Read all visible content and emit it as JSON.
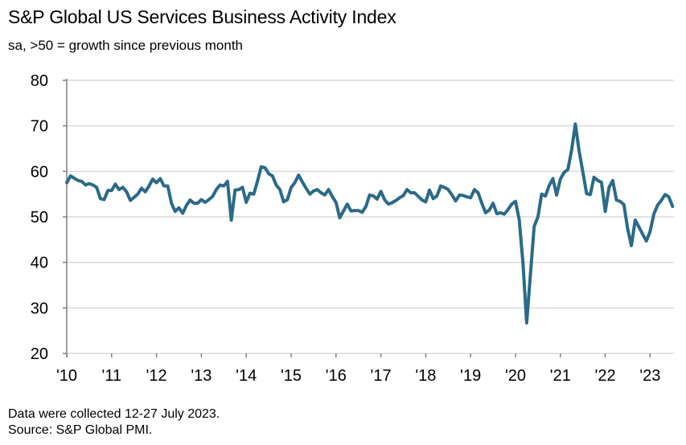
{
  "title": "S&P Global US Services Business Activity Index",
  "subtitle": "sa, >50 = growth since previous month",
  "footer": {
    "note": "Data were collected 12-27 July 2023.",
    "source": "Source: S&P Global PMI."
  },
  "colors": {
    "line": "#2b6a88",
    "grid": "#d9d9d9",
    "axis": "#808080"
  },
  "chart_data": {
    "type": "line",
    "title": "S&P Global US Services Business Activity Index",
    "xlabel": "",
    "ylabel": "",
    "ylim": [
      20,
      80
    ],
    "yticks": [
      "20",
      "30",
      "40",
      "50",
      "60",
      "70",
      "80"
    ],
    "xticks": [
      "'10",
      "'11",
      "'12",
      "'13",
      "'14",
      "'15",
      "'16",
      "'17",
      "'18",
      "'19",
      "'20",
      "'21",
      "'22",
      "'23"
    ],
    "x_start": "2010-01",
    "x_end": "2023-07",
    "frequency": "monthly",
    "grid": true,
    "series": [
      {
        "name": "Services Business Activity Index",
        "values": [
          57.5,
          59,
          58.5,
          58,
          57.8,
          57,
          57.3,
          57,
          56.5,
          54,
          53.8,
          55.8,
          55.8,
          57.2,
          56,
          56.5,
          55.5,
          53.6,
          54.3,
          55,
          56.3,
          55.5,
          56.8,
          58.3,
          57.5,
          58.4,
          56.8,
          56.8,
          53,
          51.2,
          52,
          50.8,
          52.5,
          53.7,
          53,
          53,
          53.8,
          53.2,
          53.8,
          54.5,
          56,
          57,
          56.8,
          57.8,
          49.3,
          55.9,
          56,
          56.5,
          53.2,
          55.2,
          55,
          57.8,
          61,
          60.8,
          59.5,
          59,
          57,
          56,
          53.3,
          53.8,
          56.5,
          57.5,
          59.2,
          57.7,
          56.3,
          55,
          55.7,
          56,
          55.3,
          54.8,
          56,
          54.5,
          53.2,
          49.8,
          51.3,
          52.8,
          51.3,
          51.4,
          51.4,
          51,
          52.3,
          54.8,
          54.6,
          53.9,
          55.6,
          53.8,
          52.8,
          53.1,
          53.6,
          54.2,
          54.7,
          56,
          55.3,
          55.3,
          54.5,
          53.7,
          53.3,
          55.9,
          54,
          54.6,
          56.8,
          56.5,
          56,
          54.8,
          53.5,
          54.8,
          54.7,
          54.4,
          54.2,
          56,
          55.3,
          53,
          50.9,
          51.5,
          53,
          50.7,
          50.9,
          50.6,
          51.6,
          52.8,
          53.4,
          49.4,
          39.8,
          26.7,
          37.5,
          47.9,
          50,
          55,
          54.6,
          56.9,
          58.4,
          54.8,
          58.3,
          59.8,
          60.4,
          64.7,
          70.4,
          64.6,
          59.9,
          55.1,
          54.9,
          58.7,
          58,
          57.6,
          51.2,
          56.5,
          58,
          53.7,
          53.4,
          52.7,
          47.3,
          43.7,
          49.3,
          47.8,
          46.2,
          44.7,
          46.8,
          50.6,
          52.6,
          53.6,
          54.9,
          54.4,
          52.3
        ]
      }
    ]
  }
}
